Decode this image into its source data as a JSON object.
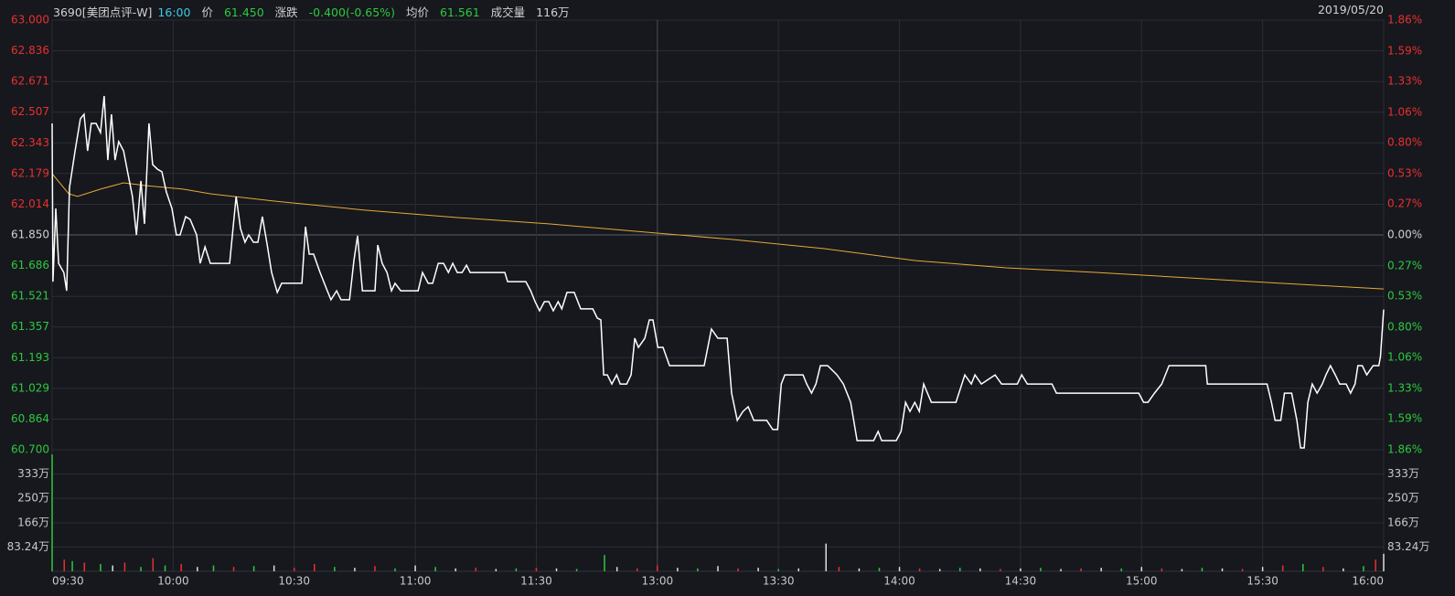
{
  "header": {
    "code": "3690[美团点评-W]",
    "time": "16:00",
    "price_label": "价",
    "price": "61.450",
    "change_label": "涨跌",
    "change": "-0.400(-0.65%)",
    "avg_label": "均价",
    "avg": "61.561",
    "vol_label": "成交量",
    "vol": "116万",
    "date": "2019/05/20"
  },
  "chart_data": {
    "type": "line",
    "x": [
      0.0,
      0.2,
      0.9,
      1.6,
      2.9,
      3.6,
      4.3,
      5.7,
      7.0,
      7.9,
      8.8,
      9.7,
      10.9,
      12.0,
      12.9,
      13.8,
      14.7,
      15.6,
      16.5,
      17.7,
      18.8,
      19.9,
      20.9,
      22.0,
      22.9,
      24.0,
      24.9,
      26.1,
      27.2,
      28.3,
      29.7,
      30.8,
      31.7,
      33.1,
      34.2,
      35.8,
      36.7,
      37.9,
      39.2,
      44.0,
      45.6,
      46.7,
      47.8,
      48.7,
      49.9,
      51.0,
      52.1,
      53.3,
      54.4,
      55.8,
      56.9,
      61.9,
      62.8,
      63.7,
      64.8,
      66.4,
      68.2,
      69.1,
      70.5,
      71.6,
      73.7,
      74.8,
      75.7,
      76.9,
      80.0,
      80.7,
      81.8,
      83.0,
      84.1,
      85.0,
      86.4,
      90.7,
      91.8,
      93.2,
      94.3,
      95.7,
      97.0,
      98.2,
      99.3,
      100.4,
      101.6,
      102.7,
      103.6,
      112.2,
      112.9,
      117.4,
      118.6,
      119.7,
      120.8,
      122.0,
      123.1,
      124.2,
      125.4,
      126.3,
      127.6,
      129.4,
      131.0,
      134.0,
      135.1,
      136.0,
      136.7,
      137.6,
      138.7,
      139.9,
      140.8,
      142.4,
      143.5,
      144.4,
      145.3,
      146.9,
      148.0,
      148.9,
      150.1,
      151.4,
      153.0,
      161.6,
      163.4,
      165.0,
      167.3,
      168.4,
      169.8,
      171.2,
      172.5,
      173.9,
      177.1,
      178.6,
      179.8,
      180.7,
      181.6,
      186.1,
      187.0,
      188.2,
      189.3,
      190.4,
      192.2,
      194.5,
      196.1,
      197.9,
      199.5,
      203.6,
      204.7,
      205.6,
      209.2,
      210.4,
      211.5,
      212.6,
      213.8,
      214.9,
      216.0,
      217.9,
      224.0,
      225.1,
      226.2,
      227.8,
      228.7,
      230.3,
      233.7,
      235.3,
      239.2,
      240.3,
      241.7,
      247.8,
      248.9,
      269.3,
      270.5,
      271.6,
      273.2,
      275.0,
      276.8,
      285.9,
      286.3,
      301.1,
      302.2,
      303.1,
      304.5,
      305.4,
      307.2,
      308.5,
      309.4,
      310.3,
      311.2,
      312.3,
      313.5,
      314.8,
      315.7,
      316.8,
      318.0,
      319.1,
      320.7,
      321.8,
      322.9,
      323.6,
      324.7,
      325.8,
      327.4,
      328.8,
      329.2,
      330.0
    ],
    "series": [
      {
        "color": "#ffffff",
        "values": [
          62.447,
          61.6,
          61.992,
          61.698,
          61.649,
          61.551,
          62.104,
          62.3,
          62.472,
          62.496,
          62.3,
          62.447,
          62.447,
          62.398,
          62.594,
          62.251,
          62.496,
          62.251,
          62.349,
          62.3,
          62.178,
          62.056,
          61.85,
          62.139,
          61.909,
          62.447,
          62.227,
          62.202,
          62.188,
          62.08,
          61.992,
          61.85,
          61.85,
          61.948,
          61.933,
          61.85,
          61.698,
          61.786,
          61.698,
          61.698,
          62.056,
          61.884,
          61.811,
          61.85,
          61.811,
          61.811,
          61.948,
          61.796,
          61.649,
          61.542,
          61.591,
          61.591,
          61.894,
          61.747,
          61.747,
          61.649,
          61.551,
          61.503,
          61.551,
          61.503,
          61.503,
          61.713,
          61.845,
          61.551,
          61.551,
          61.796,
          61.698,
          61.649,
          61.551,
          61.591,
          61.551,
          61.551,
          61.649,
          61.591,
          61.591,
          61.698,
          61.698,
          61.649,
          61.698,
          61.649,
          61.649,
          61.688,
          61.649,
          61.649,
          61.6,
          61.6,
          61.551,
          61.493,
          61.444,
          61.493,
          61.493,
          61.444,
          61.493,
          61.454,
          61.542,
          61.542,
          61.454,
          61.454,
          61.405,
          61.395,
          61.101,
          61.101,
          61.052,
          61.101,
          61.052,
          61.052,
          61.101,
          61.297,
          61.248,
          61.297,
          61.395,
          61.395,
          61.248,
          61.248,
          61.15,
          61.15,
          61.346,
          61.297,
          61.297,
          61.003,
          60.857,
          60.905,
          60.93,
          60.857,
          60.857,
          60.808,
          60.808,
          61.052,
          61.101,
          61.101,
          61.052,
          61.003,
          61.052,
          61.15,
          61.15,
          61.101,
          61.052,
          60.954,
          60.749,
          60.749,
          60.798,
          60.749,
          60.749,
          60.798,
          60.954,
          60.905,
          60.954,
          60.905,
          61.052,
          60.954,
          60.954,
          61.028,
          61.101,
          61.052,
          61.101,
          61.052,
          61.101,
          61.052,
          61.052,
          61.101,
          61.052,
          61.052,
          61.003,
          61.003,
          60.954,
          60.954,
          61.003,
          61.052,
          61.15,
          61.15,
          61.052,
          61.052,
          60.954,
          60.857,
          60.857,
          61.003,
          61.003,
          60.857,
          60.71,
          60.71,
          60.954,
          61.052,
          61.003,
          61.052,
          61.101,
          61.15,
          61.101,
          61.052,
          61.052,
          61.003,
          61.052,
          61.15,
          61.15,
          61.101,
          61.15,
          61.15,
          61.199,
          61.45
        ]
      }
    ],
    "avg_line": {
      "color": "#e8a838",
      "x": [
        0.0,
        4.1,
        6.3,
        12.0,
        17.7,
        23.4,
        32.4,
        39.2,
        55.1,
        77.8,
        100.4,
        123.1,
        149.9,
        168.4,
        191.1,
        213.8,
        236.5,
        259.1,
        281.8,
        304.5,
        330.0
      ],
      "values": [
        62.178,
        62.07,
        62.056,
        62.095,
        62.129,
        62.114,
        62.095,
        62.07,
        62.031,
        61.982,
        61.943,
        61.909,
        61.86,
        61.826,
        61.777,
        61.713,
        61.674,
        61.649,
        61.62,
        61.591,
        61.561
      ]
    },
    "xlim": [
      0,
      330
    ],
    "xticks": [
      {
        "value": 0,
        "label": "09:30"
      },
      {
        "value": 30,
        "label": "10:00"
      },
      {
        "value": 60,
        "label": "10:30"
      },
      {
        "value": 90,
        "label": "11:00"
      },
      {
        "value": 120,
        "label": "11:30"
      },
      {
        "value": 150,
        "label": "13:00"
      },
      {
        "value": 180,
        "label": "13:30"
      },
      {
        "value": 210,
        "label": "14:00"
      },
      {
        "value": 240,
        "label": "14:30"
      },
      {
        "value": 270,
        "label": "15:00"
      },
      {
        "value": 300,
        "label": "15:30"
      },
      {
        "value": 330,
        "label": "16:00"
      }
    ],
    "ylim": [
      60.7,
      63.0
    ],
    "yticks": [
      {
        "value": 63.0,
        "label": "63.000",
        "color": "#e83030"
      },
      {
        "value": 62.836,
        "label": "62.836",
        "color": "#e83030"
      },
      {
        "value": 62.671,
        "label": "62.671",
        "color": "#e83030"
      },
      {
        "value": 62.507,
        "label": "62.507",
        "color": "#e83030"
      },
      {
        "value": 62.343,
        "label": "62.343",
        "color": "#e83030"
      },
      {
        "value": 62.179,
        "label": "62.179",
        "color": "#e83030"
      },
      {
        "value": 62.014,
        "label": "62.014",
        "color": "#e83030"
      },
      {
        "value": 61.85,
        "label": "61.850",
        "color": "#d0d0d0"
      },
      {
        "value": 61.686,
        "label": "61.686",
        "color": "#2ec840"
      },
      {
        "value": 61.521,
        "label": "61.521",
        "color": "#2ec840"
      },
      {
        "value": 61.357,
        "label": "61.357",
        "color": "#2ec840"
      },
      {
        "value": 61.193,
        "label": "61.193",
        "color": "#2ec840"
      },
      {
        "value": 61.029,
        "label": "61.029",
        "color": "#2ec840"
      },
      {
        "value": 60.864,
        "label": "60.864",
        "color": "#2ec840"
      },
      {
        "value": 60.7,
        "label": "60.700",
        "color": "#2ec840"
      }
    ],
    "y2lim": [
      -1.86,
      1.86
    ],
    "y2ticks": [
      {
        "value": 1.86,
        "label": "1.86%",
        "color": "#e83030"
      },
      {
        "value": 1.59,
        "label": "1.59%",
        "color": "#e83030"
      },
      {
        "value": 1.33,
        "label": "1.33%",
        "color": "#e83030"
      },
      {
        "value": 1.06,
        "label": "1.06%",
        "color": "#e83030"
      },
      {
        "value": 0.8,
        "label": "0.80%",
        "color": "#e83030"
      },
      {
        "value": 0.53,
        "label": "0.53%",
        "color": "#e83030"
      },
      {
        "value": 0.27,
        "label": "0.27%",
        "color": "#e83030"
      },
      {
        "value": 0,
        "label": "0.00%",
        "color": "#d0d0d0"
      },
      {
        "value": -0.27,
        "label": "0.27%",
        "color": "#2ec840"
      },
      {
        "value": -0.53,
        "label": "0.53%",
        "color": "#2ec840"
      },
      {
        "value": -0.8,
        "label": "0.80%",
        "color": "#2ec840"
      },
      {
        "value": -1.06,
        "label": "1.06%",
        "color": "#2ec840"
      },
      {
        "value": -1.33,
        "label": "1.33%",
        "color": "#2ec840"
      },
      {
        "value": -1.59,
        "label": "1.59%",
        "color": "#2ec840"
      },
      {
        "value": -1.86,
        "label": "1.86%",
        "color": "#2ec840"
      }
    ],
    "grid": true,
    "volume": {
      "type": "bar",
      "x": [
        0,
        3,
        5,
        8,
        12,
        15,
        18,
        22,
        25,
        28,
        32,
        36,
        40,
        45,
        50,
        55,
        60,
        65,
        70,
        75,
        80,
        85,
        90,
        95,
        100,
        105,
        110,
        115,
        120,
        125,
        130,
        136.9,
        140,
        145,
        150,
        155,
        160,
        165,
        170,
        175,
        180,
        185,
        191.8,
        195,
        200,
        205,
        210,
        215,
        220,
        225,
        230,
        235,
        240,
        245,
        250,
        255,
        260,
        265,
        270,
        275,
        280,
        285,
        290,
        295,
        300,
        305,
        310,
        315,
        320,
        325,
        328,
        330
      ],
      "values": [
        400,
        40,
        35,
        30,
        25,
        20,
        30,
        15,
        45,
        20,
        25,
        15,
        20,
        15,
        18,
        20,
        12,
        25,
        15,
        12,
        18,
        10,
        20,
        15,
        10,
        12,
        8,
        10,
        12,
        10,
        8,
        56,
        15,
        10,
        20,
        12,
        10,
        18,
        10,
        12,
        8,
        10,
        95,
        15,
        10,
        12,
        15,
        10,
        8,
        12,
        10,
        8,
        10,
        12,
        8,
        10,
        12,
        10,
        15,
        10,
        8,
        12,
        10,
        8,
        15,
        20,
        25,
        15,
        10,
        18,
        40,
        60
      ],
      "colors": [
        "#2ec840",
        "#e83030",
        "#2ec840",
        "#e83030",
        "#2ec840",
        "#dddddd",
        "#e83030",
        "#2ec840",
        "#e83030",
        "#2ec840",
        "#e83030",
        "#dddddd",
        "#2ec840",
        "#e83030",
        "#2ec840",
        "#dddddd",
        "#e83030",
        "#e83030",
        "#2ec840",
        "#dddddd",
        "#e83030",
        "#2ec840",
        "#dddddd",
        "#2ec840",
        "#dddddd",
        "#e83030",
        "#dddddd",
        "#2ec840",
        "#e83030",
        "#dddddd",
        "#2ec840",
        "#2ec840",
        "#dddddd",
        "#e83030",
        "#e83030",
        "#dddddd",
        "#2ec840",
        "#dddddd",
        "#e83030",
        "#dddddd",
        "#2ec840",
        "#dddddd",
        "#dddddd",
        "#e83030",
        "#dddddd",
        "#2ec840",
        "#dddddd",
        "#e83030",
        "#dddddd",
        "#2ec840",
        "#dddddd",
        "#e83030",
        "#dddddd",
        "#2ec840",
        "#dddddd",
        "#e83030",
        "#dddddd",
        "#2ec840",
        "#dddddd",
        "#e83030",
        "#dddddd",
        "#2ec840",
        "#dddddd",
        "#e83030",
        "#dddddd",
        "#e83030",
        "#2ec840",
        "#e83030",
        "#dddddd",
        "#2ec840",
        "#e83030",
        "#dddddd"
      ],
      "ylim": [
        0,
        416.2
      ],
      "yticks": [
        {
          "value": 83.24,
          "label": "83.24万"
        },
        {
          "value": 166,
          "label": "166万"
        },
        {
          "value": 250,
          "label": "250万"
        },
        {
          "value": 333,
          "label": "333万"
        }
      ]
    }
  }
}
